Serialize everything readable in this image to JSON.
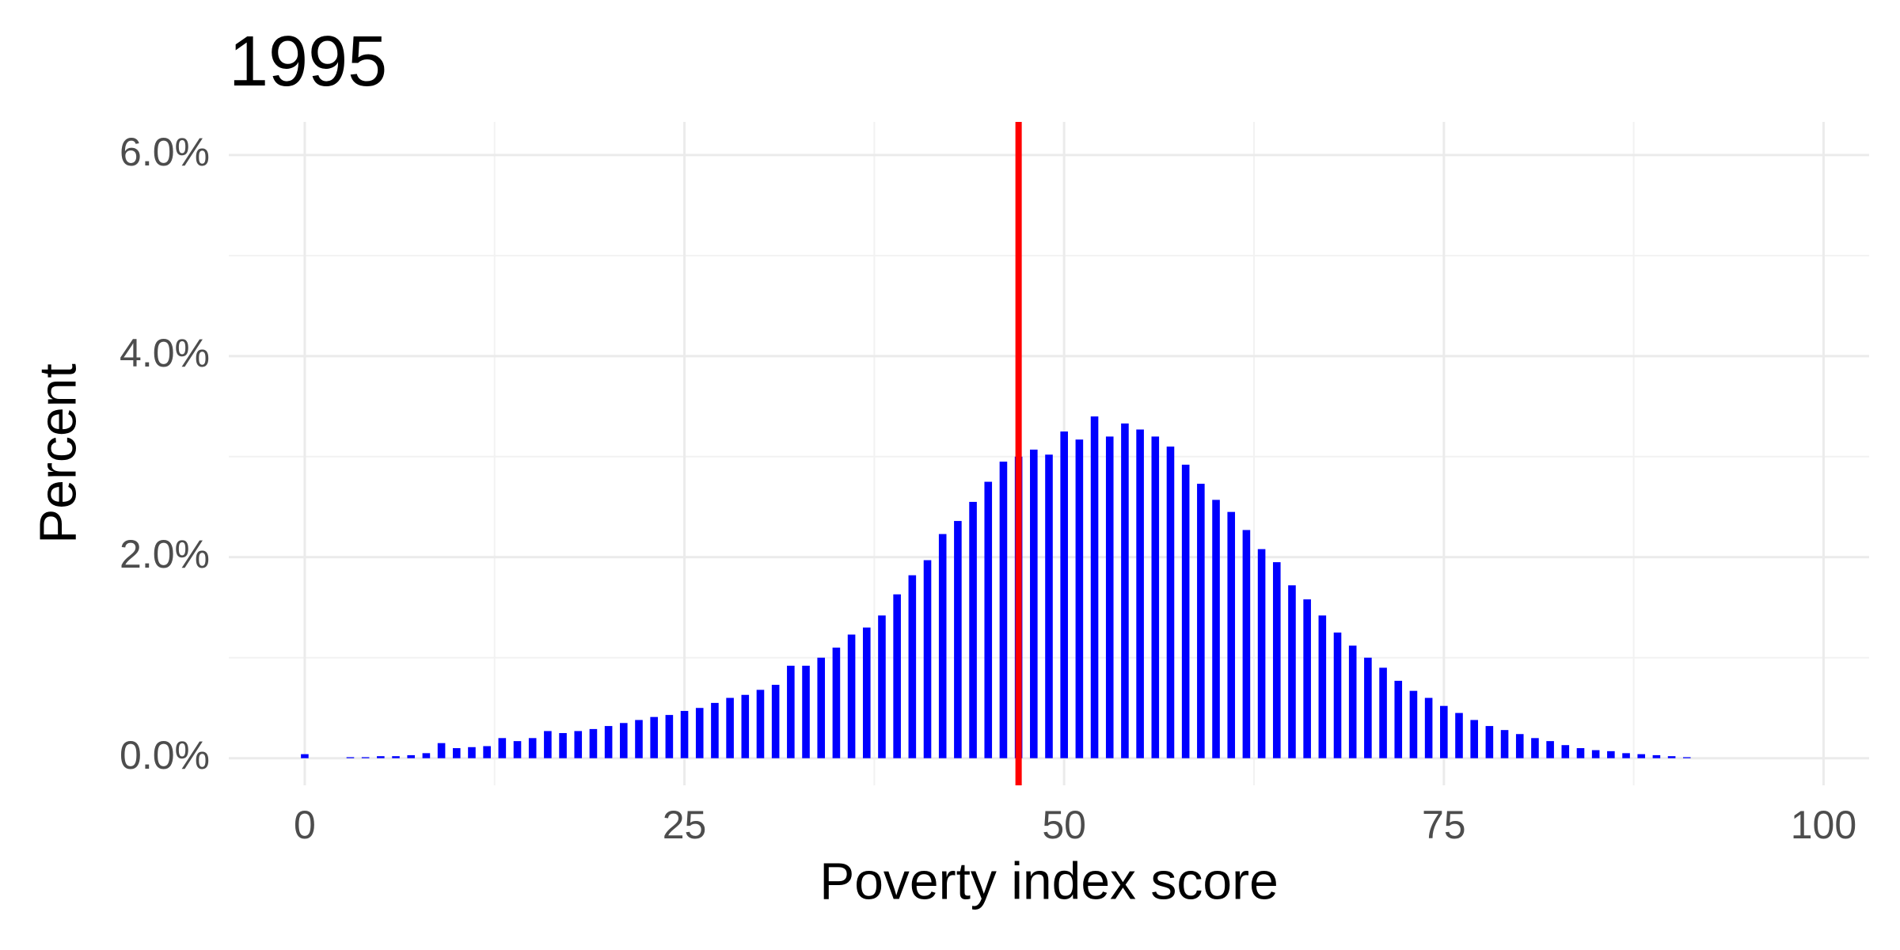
{
  "chart_data": {
    "type": "bar",
    "title": "1995",
    "x_label": "Poverty index score",
    "y_label": "Percent",
    "x": [
      0,
      1,
      2,
      3,
      4,
      5,
      6,
      7,
      8,
      9,
      10,
      11,
      12,
      13,
      14,
      15,
      16,
      17,
      18,
      19,
      20,
      21,
      22,
      23,
      24,
      25,
      26,
      27,
      28,
      29,
      30,
      31,
      32,
      33,
      34,
      35,
      36,
      37,
      38,
      39,
      40,
      41,
      42,
      43,
      44,
      45,
      46,
      47,
      48,
      49,
      50,
      51,
      52,
      53,
      54,
      55,
      56,
      57,
      58,
      59,
      60,
      61,
      62,
      63,
      64,
      65,
      66,
      67,
      68,
      69,
      70,
      71,
      72,
      73,
      74,
      75,
      76,
      77,
      78,
      79,
      80,
      81,
      82,
      83,
      84,
      85,
      86,
      87,
      88,
      89,
      90,
      91,
      92,
      93,
      94,
      95,
      96,
      97,
      98,
      99,
      100
    ],
    "values": [
      0.04,
      0,
      0,
      0.01,
      0.01,
      0.02,
      0.02,
      0.03,
      0.05,
      0.15,
      0.1,
      0.11,
      0.12,
      0.2,
      0.17,
      0.2,
      0.27,
      0.25,
      0.27,
      0.29,
      0.32,
      0.35,
      0.38,
      0.41,
      0.43,
      0.47,
      0.5,
      0.55,
      0.6,
      0.63,
      0.68,
      0.73,
      0.92,
      0.92,
      1.0,
      1.1,
      1.23,
      1.3,
      1.42,
      1.63,
      1.82,
      1.97,
      2.23,
      2.36,
      2.55,
      2.75,
      2.95,
      3.0,
      3.07,
      3.02,
      3.25,
      3.17,
      3.4,
      3.2,
      3.33,
      3.27,
      3.2,
      3.1,
      2.92,
      2.73,
      2.57,
      2.45,
      2.27,
      2.08,
      1.95,
      1.72,
      1.58,
      1.42,
      1.25,
      1.12,
      1.0,
      0.9,
      0.77,
      0.67,
      0.6,
      0.52,
      0.45,
      0.38,
      0.32,
      0.28,
      0.24,
      0.2,
      0.17,
      0.13,
      0.1,
      0.08,
      0.07,
      0.05,
      0.04,
      0.03,
      0.02,
      0.01,
      0,
      0,
      0,
      0,
      0,
      0,
      0,
      0,
      0
    ],
    "color": "#0000ff",
    "reference_line": {
      "value": 47,
      "color": "#ff0000"
    },
    "xlim": [
      -5,
      103
    ],
    "xticks": [
      0,
      25,
      50,
      75,
      100
    ],
    "ylim": [
      -0.27,
      6.33
    ],
    "yticks": [
      {
        "value": 0,
        "label": "0.0%"
      },
      {
        "value": 2,
        "label": "2.0%"
      },
      {
        "value": 4,
        "label": "4.0%"
      },
      {
        "value": 6,
        "label": "6.0%"
      }
    ],
    "grid": true
  }
}
